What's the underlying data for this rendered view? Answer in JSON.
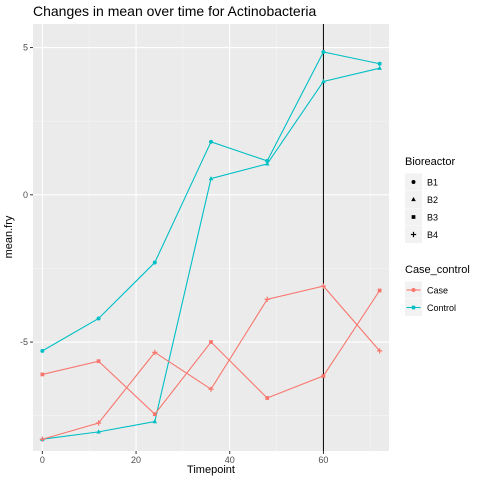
{
  "chart_data": {
    "type": "line",
    "title": "Changes in mean over time for  Actinobacteria",
    "xlabel": "Timepoint",
    "ylabel": "mean.fry",
    "xlim": [
      -2,
      74
    ],
    "ylim": [
      -8.7,
      5.8
    ],
    "x_ticks": [
      0,
      20,
      40,
      60
    ],
    "x_tick_labels": [
      "0",
      "20",
      "40",
      "60"
    ],
    "y_ticks": [
      5,
      0,
      -5
    ],
    "y_tick_labels": [
      "5",
      "0",
      "-5"
    ],
    "grid": true,
    "vline_x": 60,
    "legend_placement": "right",
    "legends": [
      {
        "title": "Bioreactor",
        "entries": [
          {
            "label": "B1",
            "shape": "circle"
          },
          {
            "label": "B2",
            "shape": "triangle"
          },
          {
            "label": "B3",
            "shape": "square"
          },
          {
            "label": "B4",
            "shape": "plus"
          }
        ]
      },
      {
        "title": "Case_control",
        "entries": [
          {
            "label": "Case",
            "color": "#F8766D"
          },
          {
            "label": "Control",
            "color": "#00BFC4"
          }
        ]
      }
    ],
    "series": [
      {
        "bioreactor": "B1",
        "group": "Control",
        "shape": "circle",
        "color": "#00BFC4",
        "x": [
          0,
          12,
          24,
          36,
          48,
          60,
          72
        ],
        "y": [
          -5.3,
          -4.2,
          -2.3,
          1.8,
          1.15,
          4.85,
          4.45
        ]
      },
      {
        "bioreactor": "B2",
        "group": "Control",
        "shape": "triangle",
        "color": "#00BFC4",
        "x": [
          0,
          12,
          24,
          36,
          48,
          60,
          72
        ],
        "y": [
          -8.3,
          -8.05,
          -7.7,
          0.55,
          1.05,
          3.85,
          4.3
        ]
      },
      {
        "bioreactor": "B3",
        "group": "Case",
        "shape": "square",
        "color": "#F8766D",
        "x": [
          0,
          12,
          24,
          36,
          48,
          60,
          72
        ],
        "y": [
          -6.1,
          -5.65,
          -7.45,
          -5.0,
          -6.9,
          -6.15,
          -3.25
        ]
      },
      {
        "bioreactor": "B4",
        "group": "Case",
        "shape": "plus",
        "color": "#F8766D",
        "x": [
          0,
          12,
          24,
          36,
          48,
          60,
          72
        ],
        "y": [
          -8.3,
          -7.75,
          -5.35,
          -6.6,
          -3.55,
          -3.1,
          -5.3
        ]
      }
    ]
  }
}
